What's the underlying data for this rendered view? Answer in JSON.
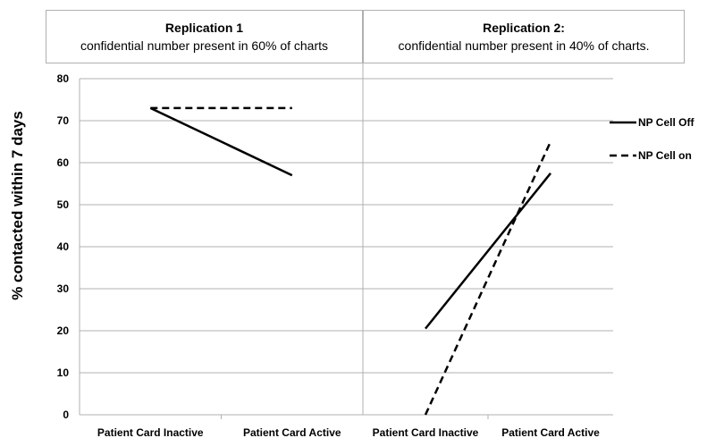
{
  "chart_data": {
    "type": "line",
    "ylabel": "% contacted within 7 days",
    "ylim": [
      0,
      80
    ],
    "yticks": [
      0,
      10,
      20,
      30,
      40,
      50,
      60,
      70,
      80
    ],
    "grid": true,
    "legend_position": "right",
    "series_styles": [
      {
        "name": "NP Cell Off",
        "dash": "solid",
        "color": "#000000"
      },
      {
        "name": "NP Cell on",
        "dash": "dashed",
        "color": "#000000"
      }
    ],
    "panels": [
      {
        "title": "Replication 1",
        "subtitle": "confidential number present in 60% of charts",
        "categories": [
          "Patient Card Inactive",
          "Patient Card Active"
        ],
        "series": [
          {
            "name": "NP Cell Off",
            "values": [
              73,
              57
            ]
          },
          {
            "name": "NP Cell on",
            "values": [
              73,
              73
            ]
          }
        ]
      },
      {
        "title": "Replication 2:",
        "subtitle": "confidential number present in 40% of charts.",
        "categories": [
          "Patient Card Inactive",
          "Patient Card Active"
        ],
        "series": [
          {
            "name": "NP Cell Off",
            "values": [
              20.5,
              57.5
            ]
          },
          {
            "name": "NP Cell on",
            "values": [
              0,
              65
            ]
          }
        ]
      }
    ]
  }
}
